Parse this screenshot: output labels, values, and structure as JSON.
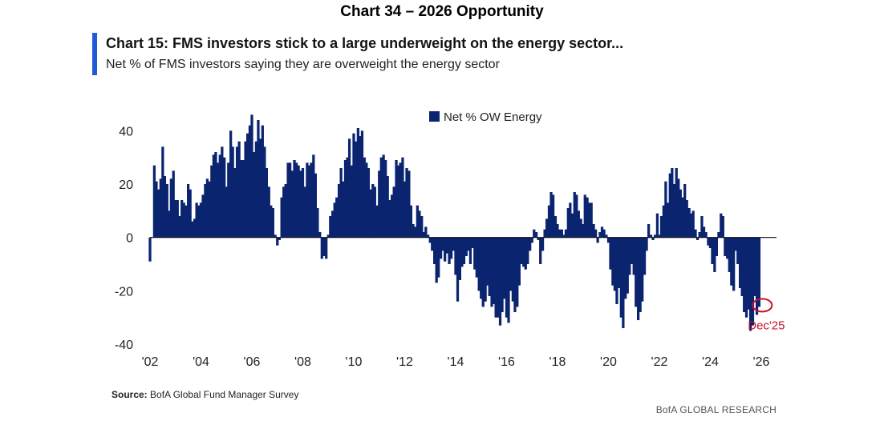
{
  "header": {
    "title": "Chart 34 –  2026 Opportunity"
  },
  "chart_data": {
    "type": "bar",
    "title": "Chart 15: FMS investors stick to a large underweight on the energy sector...",
    "subtitle": "Net % of FMS investors saying they are overweight the energy sector",
    "series": [
      {
        "name": "Net % OW Energy",
        "color": "#0b2470"
      }
    ],
    "ylim": [
      -40,
      50
    ],
    "yticks": [
      40,
      20,
      0,
      -20,
      -40
    ],
    "xlim": [
      2002,
      2026.6
    ],
    "xticks": [
      "'02",
      "'04",
      "'06",
      "'08",
      "'10",
      "'12",
      "'14",
      "'16",
      "'18",
      "'20",
      "'22",
      "'24",
      "'26"
    ],
    "xtick_years": [
      2002,
      2004,
      2006,
      2008,
      2010,
      2012,
      2014,
      2016,
      2018,
      2020,
      2022,
      2024,
      2026
    ],
    "annotation": {
      "label": "Dec'25",
      "x": 2025.95,
      "y": -26,
      "color": "#c8102e"
    },
    "data": [
      [
        2002.0,
        -9
      ],
      [
        2002.17,
        27
      ],
      [
        2002.25,
        21
      ],
      [
        2002.33,
        18
      ],
      [
        2002.42,
        22
      ],
      [
        2002.5,
        34
      ],
      [
        2002.58,
        23
      ],
      [
        2002.67,
        20
      ],
      [
        2002.75,
        10
      ],
      [
        2002.83,
        22
      ],
      [
        2002.92,
        25
      ],
      [
        2003.0,
        14
      ],
      [
        2003.08,
        14
      ],
      [
        2003.17,
        8
      ],
      [
        2003.25,
        14
      ],
      [
        2003.33,
        13
      ],
      [
        2003.42,
        12
      ],
      [
        2003.5,
        20
      ],
      [
        2003.58,
        18
      ],
      [
        2003.67,
        6
      ],
      [
        2003.75,
        7
      ],
      [
        2003.83,
        13
      ],
      [
        2003.92,
        12
      ],
      [
        2004.0,
        13
      ],
      [
        2004.08,
        16
      ],
      [
        2004.17,
        20
      ],
      [
        2004.25,
        22
      ],
      [
        2004.33,
        21
      ],
      [
        2004.42,
        27
      ],
      [
        2004.5,
        31
      ],
      [
        2004.58,
        32
      ],
      [
        2004.67,
        28
      ],
      [
        2004.75,
        31
      ],
      [
        2004.83,
        34
      ],
      [
        2004.92,
        30
      ],
      [
        2005.0,
        19
      ],
      [
        2005.08,
        28
      ],
      [
        2005.17,
        40
      ],
      [
        2005.25,
        34
      ],
      [
        2005.33,
        26
      ],
      [
        2005.42,
        34
      ],
      [
        2005.5,
        36
      ],
      [
        2005.58,
        29
      ],
      [
        2005.67,
        29
      ],
      [
        2005.75,
        36
      ],
      [
        2005.83,
        39
      ],
      [
        2005.92,
        42
      ],
      [
        2006.0,
        46
      ],
      [
        2006.08,
        32
      ],
      [
        2006.17,
        36
      ],
      [
        2006.25,
        44
      ],
      [
        2006.33,
        37
      ],
      [
        2006.42,
        42
      ],
      [
        2006.5,
        34
      ],
      [
        2006.58,
        26
      ],
      [
        2006.67,
        19
      ],
      [
        2006.75,
        12
      ],
      [
        2006.83,
        11
      ],
      [
        2006.92,
        1
      ],
      [
        2007.0,
        -3
      ],
      [
        2007.08,
        -1
      ],
      [
        2007.17,
        15
      ],
      [
        2007.25,
        19
      ],
      [
        2007.33,
        20
      ],
      [
        2007.42,
        28
      ],
      [
        2007.5,
        28
      ],
      [
        2007.58,
        25
      ],
      [
        2007.67,
        29
      ],
      [
        2007.75,
        28
      ],
      [
        2007.83,
        27
      ],
      [
        2007.92,
        25
      ],
      [
        2008.0,
        26
      ],
      [
        2008.08,
        19
      ],
      [
        2008.17,
        28
      ],
      [
        2008.25,
        27
      ],
      [
        2008.33,
        28
      ],
      [
        2008.42,
        31
      ],
      [
        2008.5,
        24
      ],
      [
        2008.58,
        11
      ],
      [
        2008.67,
        2
      ],
      [
        2008.75,
        -8
      ],
      [
        2008.83,
        -7
      ],
      [
        2008.92,
        -8
      ],
      [
        2009.0,
        1
      ],
      [
        2009.08,
        8
      ],
      [
        2009.17,
        10
      ],
      [
        2009.25,
        13
      ],
      [
        2009.33,
        15
      ],
      [
        2009.42,
        20
      ],
      [
        2009.5,
        26
      ],
      [
        2009.58,
        21
      ],
      [
        2009.67,
        29
      ],
      [
        2009.75,
        30
      ],
      [
        2009.83,
        37
      ],
      [
        2009.92,
        27
      ],
      [
        2010.0,
        39
      ],
      [
        2010.08,
        36
      ],
      [
        2010.17,
        41
      ],
      [
        2010.25,
        38
      ],
      [
        2010.33,
        40
      ],
      [
        2010.42,
        30
      ],
      [
        2010.5,
        28
      ],
      [
        2010.58,
        26
      ],
      [
        2010.67,
        18
      ],
      [
        2010.75,
        20
      ],
      [
        2010.83,
        19
      ],
      [
        2010.92,
        12
      ],
      [
        2011.0,
        25
      ],
      [
        2011.08,
        30
      ],
      [
        2011.17,
        31
      ],
      [
        2011.25,
        29
      ],
      [
        2011.33,
        23
      ],
      [
        2011.42,
        14
      ],
      [
        2011.5,
        16
      ],
      [
        2011.58,
        19
      ],
      [
        2011.67,
        29
      ],
      [
        2011.75,
        27
      ],
      [
        2011.83,
        28
      ],
      [
        2011.92,
        30
      ],
      [
        2012.0,
        21
      ],
      [
        2012.08,
        26
      ],
      [
        2012.17,
        25
      ],
      [
        2012.25,
        12
      ],
      [
        2012.33,
        5
      ],
      [
        2012.42,
        4
      ],
      [
        2012.5,
        12
      ],
      [
        2012.58,
        10
      ],
      [
        2012.67,
        8
      ],
      [
        2012.75,
        2
      ],
      [
        2012.83,
        4
      ],
      [
        2012.92,
        1
      ],
      [
        2013.0,
        -2
      ],
      [
        2013.08,
        -5
      ],
      [
        2013.17,
        -10
      ],
      [
        2013.25,
        -17
      ],
      [
        2013.33,
        -15
      ],
      [
        2013.42,
        -8
      ],
      [
        2013.5,
        -5
      ],
      [
        2013.58,
        -9
      ],
      [
        2013.67,
        -6
      ],
      [
        2013.75,
        -10
      ],
      [
        2013.83,
        -8
      ],
      [
        2013.92,
        -5
      ],
      [
        2014.0,
        -14
      ],
      [
        2014.08,
        -24
      ],
      [
        2014.17,
        -16
      ],
      [
        2014.25,
        -11
      ],
      [
        2014.33,
        -10
      ],
      [
        2014.42,
        -7
      ],
      [
        2014.5,
        -5
      ],
      [
        2014.58,
        -10
      ],
      [
        2014.67,
        -4
      ],
      [
        2014.75,
        -12
      ],
      [
        2014.83,
        -15
      ],
      [
        2014.92,
        -20
      ],
      [
        2015.0,
        -23
      ],
      [
        2015.08,
        -26
      ],
      [
        2015.17,
        -24
      ],
      [
        2015.25,
        -18
      ],
      [
        2015.33,
        -22
      ],
      [
        2015.42,
        -26
      ],
      [
        2015.5,
        -25
      ],
      [
        2015.58,
        -30
      ],
      [
        2015.67,
        -30
      ],
      [
        2015.75,
        -33
      ],
      [
        2015.83,
        -28
      ],
      [
        2015.92,
        -23
      ],
      [
        2016.0,
        -30
      ],
      [
        2016.08,
        -32
      ],
      [
        2016.17,
        -20
      ],
      [
        2016.25,
        -24
      ],
      [
        2016.33,
        -28
      ],
      [
        2016.42,
        -26
      ],
      [
        2016.5,
        -18
      ],
      [
        2016.58,
        -10
      ],
      [
        2016.67,
        -11
      ],
      [
        2016.75,
        -12
      ],
      [
        2016.83,
        -10
      ],
      [
        2016.92,
        -5
      ],
      [
        2017.0,
        -2
      ],
      [
        2017.08,
        3
      ],
      [
        2017.17,
        2
      ],
      [
        2017.25,
        -1
      ],
      [
        2017.33,
        -10
      ],
      [
        2017.42,
        -5
      ],
      [
        2017.5,
        3
      ],
      [
        2017.58,
        7
      ],
      [
        2017.67,
        12
      ],
      [
        2017.75,
        17
      ],
      [
        2017.83,
        16
      ],
      [
        2017.92,
        8
      ],
      [
        2018.0,
        5
      ],
      [
        2018.08,
        3
      ],
      [
        2018.17,
        3
      ],
      [
        2018.25,
        1
      ],
      [
        2018.33,
        3
      ],
      [
        2018.42,
        11
      ],
      [
        2018.5,
        13
      ],
      [
        2018.58,
        9
      ],
      [
        2018.67,
        17
      ],
      [
        2018.75,
        16
      ],
      [
        2018.83,
        10
      ],
      [
        2018.92,
        7
      ],
      [
        2019.0,
        5
      ],
      [
        2019.08,
        16
      ],
      [
        2019.17,
        15
      ],
      [
        2019.25,
        13
      ],
      [
        2019.33,
        13
      ],
      [
        2019.42,
        5
      ],
      [
        2019.5,
        3
      ],
      [
        2019.58,
        -2
      ],
      [
        2019.67,
        2
      ],
      [
        2019.75,
        4
      ],
      [
        2019.83,
        3
      ],
      [
        2019.92,
        1
      ],
      [
        2020.0,
        -2
      ],
      [
        2020.08,
        -12
      ],
      [
        2020.17,
        -18
      ],
      [
        2020.25,
        -20
      ],
      [
        2020.33,
        -25
      ],
      [
        2020.42,
        -19
      ],
      [
        2020.5,
        -30
      ],
      [
        2020.58,
        -34
      ],
      [
        2020.67,
        -23
      ],
      [
        2020.75,
        -21
      ],
      [
        2020.83,
        -14
      ],
      [
        2020.92,
        -10
      ],
      [
        2021.0,
        -14
      ],
      [
        2021.08,
        -26
      ],
      [
        2021.17,
        -31
      ],
      [
        2021.25,
        -28
      ],
      [
        2021.33,
        -24
      ],
      [
        2021.42,
        -14
      ],
      [
        2021.5,
        -5
      ],
      [
        2021.58,
        5
      ],
      [
        2021.67,
        1
      ],
      [
        2021.75,
        -1
      ],
      [
        2021.83,
        1
      ],
      [
        2021.92,
        9
      ],
      [
        2022.0,
        1
      ],
      [
        2022.08,
        8
      ],
      [
        2022.17,
        12
      ],
      [
        2022.25,
        21
      ],
      [
        2022.33,
        13
      ],
      [
        2022.42,
        24
      ],
      [
        2022.5,
        26
      ],
      [
        2022.58,
        20
      ],
      [
        2022.67,
        26
      ],
      [
        2022.75,
        22
      ],
      [
        2022.83,
        18
      ],
      [
        2022.92,
        15
      ],
      [
        2023.0,
        20
      ],
      [
        2023.08,
        14
      ],
      [
        2023.17,
        11
      ],
      [
        2023.25,
        9
      ],
      [
        2023.33,
        10
      ],
      [
        2023.42,
        3
      ],
      [
        2023.5,
        -1
      ],
      [
        2023.58,
        2
      ],
      [
        2023.67,
        8
      ],
      [
        2023.75,
        4
      ],
      [
        2023.83,
        2
      ],
      [
        2023.92,
        -3
      ],
      [
        2024.0,
        -4
      ],
      [
        2024.08,
        -10
      ],
      [
        2024.17,
        -13
      ],
      [
        2024.25,
        -7
      ],
      [
        2024.33,
        2
      ],
      [
        2024.42,
        9
      ],
      [
        2024.5,
        8
      ],
      [
        2024.58,
        -7
      ],
      [
        2024.67,
        -8
      ],
      [
        2024.75,
        -13
      ],
      [
        2024.83,
        -18
      ],
      [
        2024.92,
        -20
      ],
      [
        2025.0,
        -5
      ],
      [
        2025.08,
        -10
      ],
      [
        2025.17,
        -19
      ],
      [
        2025.25,
        -22
      ],
      [
        2025.33,
        -28
      ],
      [
        2025.42,
        -30
      ],
      [
        2025.5,
        -27
      ],
      [
        2025.58,
        -35
      ],
      [
        2025.67,
        -33
      ],
      [
        2025.75,
        -22
      ],
      [
        2025.83,
        -29
      ],
      [
        2025.92,
        -26
      ]
    ]
  },
  "footer": {
    "source_label": "Source:",
    "source_text": "BofA Global Fund Manager Survey",
    "brand": "BofA GLOBAL RESEARCH"
  }
}
